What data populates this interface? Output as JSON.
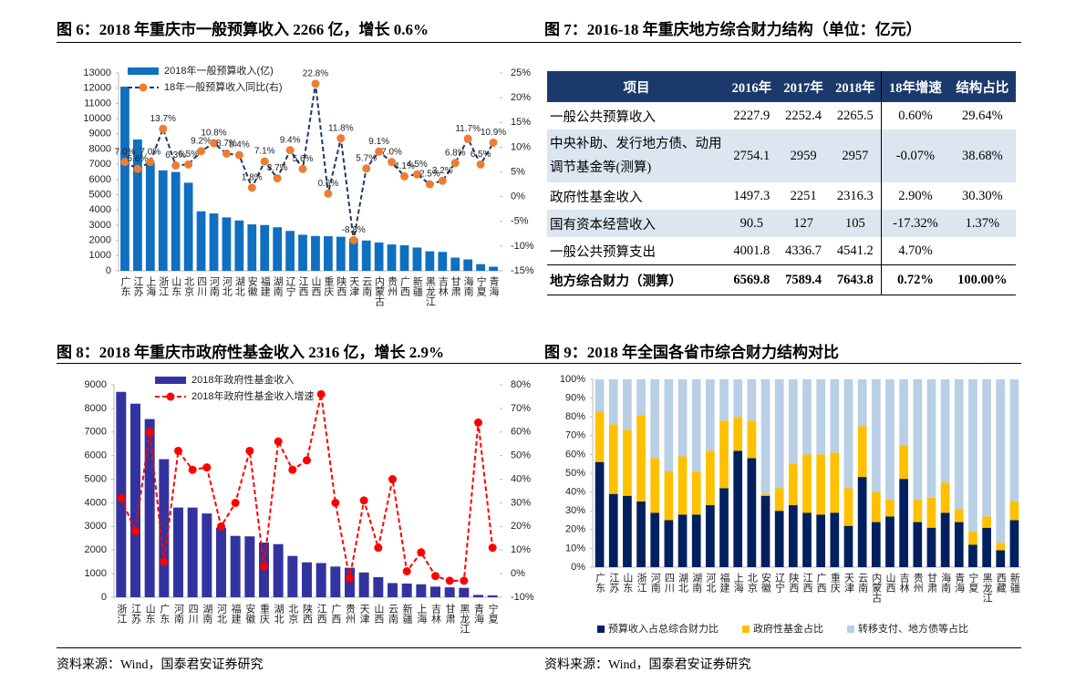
{
  "chart_data": [
    {
      "type": "combo",
      "title": "图 6：2018 年重庆市一般预算收入 2266 亿，增长 0.6%",
      "categories": [
        "广东",
        "江苏",
        "上海",
        "浙江",
        "山东",
        "北京",
        "四川",
        "河南",
        "河北",
        "湖北",
        "安徽",
        "福建",
        "湖南",
        "辽宁",
        "江西",
        "山西",
        "重庆",
        "陕西",
        "天津",
        "云南",
        "内蒙古",
        "贵州",
        "广西",
        "新疆",
        "黑龙江",
        "吉林",
        "甘肃",
        "海南",
        "宁夏",
        "青海"
      ],
      "series": [
        {
          "name": "2018年一般预算收入(亿)",
          "color": "#0f6fc1",
          "values": [
            12100,
            8630,
            7110,
            6600,
            6490,
            5790,
            3910,
            3770,
            3510,
            3310,
            3050,
            3010,
            2860,
            2620,
            2370,
            2290,
            2270,
            2240,
            2110,
            1990,
            1860,
            1730,
            1680,
            1530,
            1280,
            1240,
            870,
            750,
            440,
            270
          ]
        },
        {
          "name": "18年一般预算收入同比(右)",
          "axis": "y2",
          "color": "#1f3864",
          "marker_color": "#ed7d31",
          "dashed": true,
          "values": [
            7.0,
            5.6,
            7.0,
            13.7,
            6.3,
            6.5,
            9.2,
            10.8,
            8.7,
            8.4,
            1.8,
            7.1,
            3.7,
            9.4,
            5.6,
            22.8,
            0.6,
            11.8,
            -8.8,
            5.7,
            9.1,
            7.0,
            4.1,
            4.5,
            2.5,
            3.2,
            6.8,
            11.7,
            6.5,
            10.9
          ],
          "value_labels": [
            "7.0%",
            "5.6%",
            "7.0%",
            "13.7%",
            "6.3%",
            "6.5%",
            "9.2%",
            "10.8%",
            "8.7%",
            "8.4%",
            "1.8%",
            "7.1%",
            "3.7%",
            "9.4%",
            "5.6%",
            "22.8%",
            "0.6%",
            "11.8%",
            "-8.8%",
            "5.7%",
            "9.1%",
            "7.0%",
            "4.1%",
            "4.5%",
            "2.5%",
            "3.2%",
            "6.8%",
            "11.7%",
            "6.5%",
            "10.9%"
          ]
        }
      ],
      "ylim": [
        0,
        13000
      ],
      "yticks": [
        0,
        1000,
        2000,
        3000,
        4000,
        5000,
        6000,
        7000,
        8000,
        9000,
        10000,
        11000,
        12000,
        13000
      ],
      "y2lim": [
        -15,
        25
      ],
      "y2ticks": [
        {
          "value": -15,
          "label": "-15%"
        },
        {
          "value": -10,
          "label": "-10%"
        },
        {
          "value": -5,
          "label": "-5%"
        },
        {
          "value": 0,
          "label": "0%"
        },
        {
          "value": 5,
          "label": "5%"
        },
        {
          "value": 10,
          "label": "10%"
        },
        {
          "value": 15,
          "label": "15%"
        },
        {
          "value": 20,
          "label": "20%"
        },
        {
          "value": 25,
          "label": "25%"
        }
      ]
    },
    {
      "type": "combo",
      "title": "图 8：2018 年重庆市政府性基金收入 2316 亿，增长 2.9%",
      "categories": [
        "浙江",
        "江苏",
        "山东",
        "广东",
        "河南",
        "四川",
        "湖南",
        "河北",
        "福建",
        "安徽",
        "重庆",
        "湖北",
        "北京",
        "陕西",
        "江西",
        "广西",
        "贵州",
        "天津",
        "山西",
        "云南",
        "新疆",
        "上海",
        "吉林",
        "甘肃",
        "黑龙江",
        "青海",
        "宁夏"
      ],
      "series": [
        {
          "name": "2018年政府性基金收入",
          "color": "#3333a0",
          "values": [
            8700,
            8200,
            7550,
            5850,
            3800,
            3800,
            3550,
            2950,
            2600,
            2580,
            2316,
            2250,
            1750,
            1480,
            1450,
            1300,
            1250,
            1050,
            850,
            600,
            580,
            550,
            450,
            420,
            400,
            100,
            80
          ]
        },
        {
          "name": "2018年政府性基金收入增速",
          "axis": "y2",
          "color": "#ff0000",
          "marker_color": "#ff0000",
          "dashed": true,
          "values": [
            32,
            18,
            60,
            5,
            52,
            44,
            45,
            20,
            30,
            52,
            3,
            56,
            44,
            48,
            76,
            30,
            -2,
            31,
            11,
            40,
            1,
            9,
            -1,
            -3,
            -3,
            64,
            11
          ]
        }
      ],
      "ylim": [
        0,
        9000
      ],
      "yticks": [
        0,
        1000,
        2000,
        3000,
        4000,
        5000,
        6000,
        7000,
        8000,
        9000
      ],
      "y2lim": [
        -10,
        80
      ],
      "y2ticks": [
        {
          "value": -10,
          "label": "-10%"
        },
        {
          "value": 0,
          "label": "0%"
        },
        {
          "value": 10,
          "label": "10%"
        },
        {
          "value": 20,
          "label": "20%"
        },
        {
          "value": 30,
          "label": "30%"
        },
        {
          "value": 40,
          "label": "40%"
        },
        {
          "value": 50,
          "label": "50%"
        },
        {
          "value": 60,
          "label": "60%"
        },
        {
          "value": 70,
          "label": "70%"
        },
        {
          "value": 80,
          "label": "80%"
        }
      ]
    },
    {
      "type": "stacked",
      "title": "图 9：2018 年全国各省市综合财力结构对比",
      "categories": [
        "广东",
        "江苏",
        "山东",
        "浙江",
        "河南",
        "四川",
        "湖北",
        "湖南",
        "河北",
        "福建",
        "上海",
        "北京",
        "安徽",
        "辽宁",
        "陕西",
        "江西",
        "广西",
        "重庆",
        "天津",
        "云南",
        "内蒙古",
        "山西",
        "吉林",
        "贵州",
        "甘肃",
        "海南",
        "青海",
        "宁夏",
        "黑龙江",
        "西藏",
        "新疆"
      ],
      "series": [
        {
          "name": "预算收入占总综合财力比",
          "color": "#002060",
          "values": [
            56,
            39,
            38,
            35,
            29,
            25,
            28,
            28,
            33,
            42,
            62,
            58,
            38,
            30,
            33,
            29,
            28,
            29,
            22,
            48,
            24,
            27,
            47,
            24,
            21,
            29,
            24,
            12,
            21,
            9,
            25
          ]
        },
        {
          "name": "政府性基金占比",
          "color": "#ffc000",
          "values": [
            27,
            37,
            35,
            46,
            29,
            26,
            31,
            23,
            29,
            36,
            18,
            20,
            1,
            12,
            22,
            31,
            32,
            32,
            20,
            27,
            16,
            9,
            18,
            12,
            16,
            16,
            7,
            7,
            6,
            4,
            10
          ]
        },
        {
          "name": "转移支付、地方债等占比",
          "color": "#b8cfe6",
          "values": [
            17,
            24,
            27,
            19,
            42,
            49,
            41,
            49,
            38,
            22,
            20,
            22,
            61,
            58,
            45,
            40,
            40,
            39,
            58,
            25,
            60,
            64,
            35,
            64,
            63,
            55,
            69,
            81,
            73,
            87,
            65
          ]
        }
      ],
      "ylim": [
        0,
        100
      ],
      "yticks": [
        {
          "value": 0,
          "label": "0%"
        },
        {
          "value": 10,
          "label": "10%"
        },
        {
          "value": 20,
          "label": "20%"
        },
        {
          "value": 30,
          "label": "30%"
        },
        {
          "value": 40,
          "label": "40%"
        },
        {
          "value": 50,
          "label": "50%"
        },
        {
          "value": 60,
          "label": "60%"
        },
        {
          "value": 70,
          "label": "70%"
        },
        {
          "value": 80,
          "label": "80%"
        },
        {
          "value": 90,
          "label": "90%"
        },
        {
          "value": 100,
          "label": "100%"
        }
      ]
    }
  ],
  "table": {
    "title": "图 7：2016-18 年重庆地方综合财力结构（单位：亿元）",
    "header": [
      "项目",
      "2016年",
      "2017年",
      "2018年",
      "18年增速",
      "结构占比"
    ],
    "rows": [
      [
        "一般公共预算收入",
        "2227.9",
        "2252.4",
        "2265.5",
        "0.60%",
        "29.64%"
      ],
      [
        "中央补助、发行地方债、动用调节基金等(测算)",
        "2754.1",
        "2959",
        "2957",
        "-0.07%",
        "38.68%"
      ],
      [
        "政府性基金收入",
        "1497.3",
        "2251",
        "2316.3",
        "2.90%",
        "30.30%"
      ],
      [
        "国有资本经营收入",
        "90.5",
        "127",
        "105",
        "-17.32%",
        "1.37%"
      ],
      [
        "一般公共预算支出",
        "4001.8",
        "4336.7",
        "4541.2",
        "4.70%"
      ],
      [
        "地方综合财力（测算）",
        "6569.8",
        "7589.4",
        "7643.8",
        "0.72%",
        "100.00%"
      ]
    ]
  },
  "sources": [
    "资料来源：Wind，国泰君安证券研究",
    "资料来源：Wind，国泰君安证券研究"
  ]
}
